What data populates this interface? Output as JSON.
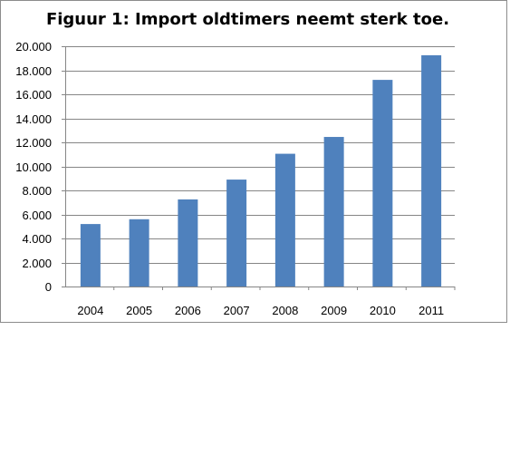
{
  "chart_data": {
    "type": "bar",
    "title": "Figuur 1: Import oldtimers neemt sterk toe.",
    "xlabel": "",
    "ylabel": "",
    "categories": [
      "2004",
      "2005",
      "2006",
      "2007",
      "2008",
      "2009",
      "2010",
      "2011"
    ],
    "values": [
      5200,
      5600,
      7250,
      8900,
      11050,
      12450,
      17200,
      19250
    ],
    "ylim": [
      0,
      20000
    ],
    "yticks": [
      0,
      2000,
      4000,
      6000,
      8000,
      10000,
      12000,
      14000,
      16000,
      18000,
      20000
    ],
    "ytick_labels": [
      "0",
      "2.000",
      "4.000",
      "6.000",
      "8.000",
      "10.000",
      "12.000",
      "14.000",
      "16.000",
      "18.000",
      "20.000"
    ],
    "grid": true,
    "legend": "none",
    "colors": {
      "bar": "#4f81bd",
      "grid": "#868686",
      "axis": "#868686"
    }
  }
}
